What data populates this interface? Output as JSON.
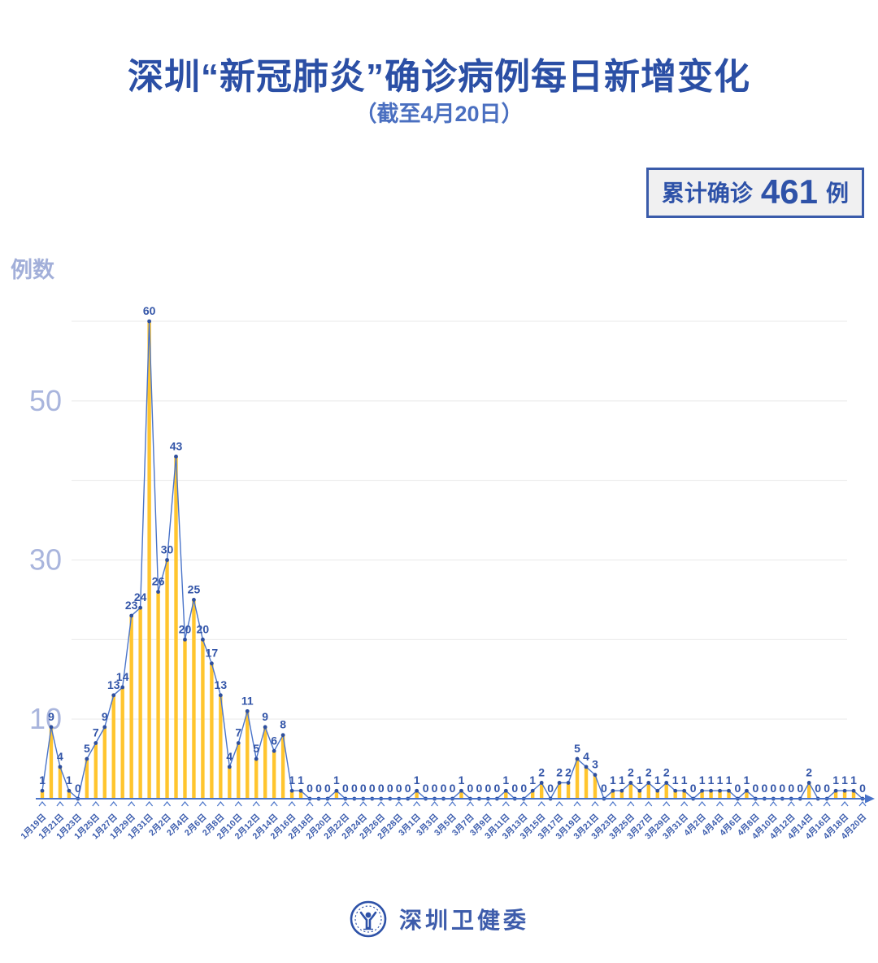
{
  "title": "深圳“新冠肺炎”确诊病例每日新增变化",
  "subtitle": "（截至4月20日）",
  "badge": {
    "prefix": "累计确诊",
    "value": "461",
    "suffix": "例"
  },
  "y_axis_title": "例数",
  "footer": {
    "org": "深圳卫健委",
    "logo": "shenzhen-health-commission-emblem"
  },
  "cumulative_total": 461,
  "chart_data": {
    "type": "bar",
    "overlay": "line",
    "title": "深圳“新冠肺炎”确诊病例每日新增变化",
    "xlabel": "",
    "ylabel": "例数",
    "ylim": [
      0,
      60
    ],
    "y_tick_labels": [
      10,
      30,
      50
    ],
    "gridlines": [
      10,
      20,
      30,
      40,
      50,
      60
    ],
    "grid": "horizontal",
    "legend": "none",
    "x_label_every": 2,
    "bar_color": "#ffc52e",
    "line_color": "#4a74c9",
    "dot_color": "#2e4f9e",
    "value_label_color": "#3355a8",
    "x_label_color": "#3b5cad",
    "y_label_color": "#a9b5dd",
    "grid_color": "#e9e9e9",
    "categories": [
      "1月19日",
      "1月20日",
      "1月21日",
      "1月22日",
      "1月23日",
      "1月24日",
      "1月25日",
      "1月26日",
      "1月27日",
      "1月28日",
      "1月29日",
      "1月30日",
      "1月31日",
      "2月1日",
      "2月2日",
      "2月3日",
      "2月4日",
      "2月5日",
      "2月6日",
      "2月7日",
      "2月8日",
      "2月9日",
      "2月10日",
      "2月11日",
      "2月12日",
      "2月13日",
      "2月14日",
      "2月15日",
      "2月16日",
      "2月17日",
      "2月18日",
      "2月19日",
      "2月20日",
      "2月21日",
      "2月22日",
      "2月23日",
      "2月24日",
      "2月25日",
      "2月26日",
      "2月27日",
      "2月28日",
      "2月29日",
      "3月1日",
      "3月2日",
      "3月3日",
      "3月4日",
      "3月5日",
      "3月6日",
      "3月7日",
      "3月8日",
      "3月9日",
      "3月10日",
      "3月11日",
      "3月12日",
      "3月13日",
      "3月14日",
      "3月15日",
      "3月16日",
      "3月17日",
      "3月18日",
      "3月19日",
      "3月20日",
      "3月21日",
      "3月22日",
      "3月23日",
      "3月24日",
      "3月25日",
      "3月26日",
      "3月27日",
      "3月28日",
      "3月29日",
      "3月30日",
      "3月31日",
      "4月1日",
      "4月2日",
      "4月3日",
      "4月4日",
      "4月5日",
      "4月6日",
      "4月7日",
      "4月8日",
      "4月9日",
      "4月10日",
      "4月11日",
      "4月12日",
      "4月13日",
      "4月14日",
      "4月15日",
      "4月16日",
      "4月17日",
      "4月18日",
      "4月19日",
      "4月20日"
    ],
    "values": [
      1,
      9,
      4,
      1,
      0,
      5,
      7,
      9,
      13,
      14,
      23,
      24,
      60,
      26,
      30,
      43,
      20,
      25,
      20,
      17,
      13,
      4,
      7,
      11,
      5,
      9,
      6,
      8,
      1,
      1,
      0,
      0,
      0,
      1,
      0,
      0,
      0,
      0,
      0,
      0,
      0,
      0,
      1,
      0,
      0,
      0,
      0,
      1,
      0,
      0,
      0,
      0,
      1,
      0,
      0,
      1,
      2,
      0,
      2,
      2,
      5,
      4,
      3,
      0,
      1,
      1,
      2,
      1,
      2,
      1,
      2,
      1,
      1,
      0,
      1,
      1,
      1,
      1,
      0,
      1,
      0,
      0,
      0,
      0,
      0,
      0,
      2,
      0,
      0,
      1,
      1,
      1,
      0
    ]
  }
}
